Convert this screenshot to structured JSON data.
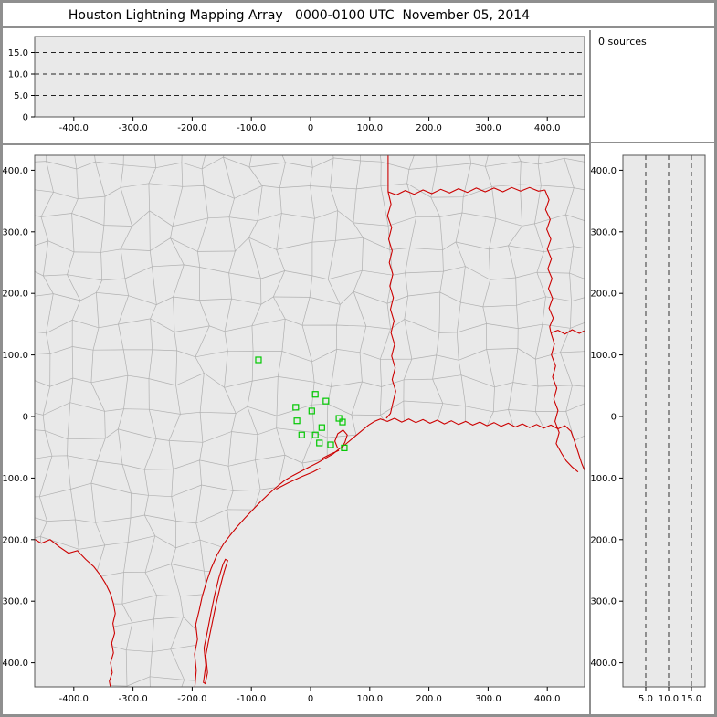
{
  "title": "Houston Lightning Mapping Array   0000-0100 UTC  November 05, 2014",
  "sources_panel": {
    "label": "0 sources"
  },
  "colors": {
    "plot_bg": "#e9e9e9",
    "county_line": "#b0b0b0",
    "state_line": "#cc0000",
    "station": "#00c800",
    "frame": "#8f8f8f",
    "axis": "#555555",
    "dashed": "#222222",
    "tick": "#000000"
  },
  "map_features": [
    "county-boundaries",
    "state-borders",
    "coastline",
    "rio-grande-river",
    "barrier-islands",
    "galveston-bay"
  ],
  "chart_data": [
    {
      "id": "altitude-vs-east-west",
      "type": "scatter",
      "role": "altitude (km) vs east-west distance (km), cross-section panel",
      "xlim": [
        -466,
        462
      ],
      "ylim": [
        0,
        18.7
      ],
      "grid": "dashed horizontal lines at 5, 10, 15 km",
      "dashed_levels": [
        5,
        10,
        15
      ],
      "x_ticks": [
        {
          "v": -400,
          "label": "-400.0"
        },
        {
          "v": -300,
          "label": "-300.0"
        },
        {
          "v": -200,
          "label": "-200.0"
        },
        {
          "v": -100,
          "label": "-100.0"
        },
        {
          "v": 0,
          "label": "0"
        },
        {
          "v": 100,
          "label": "100.0"
        },
        {
          "v": 200,
          "label": "200.0"
        },
        {
          "v": 300,
          "label": "300.0"
        },
        {
          "v": 400,
          "label": "400.0"
        }
      ],
      "y_ticks": [
        {
          "v": 15,
          "label": "15.0"
        },
        {
          "v": 10,
          "label": "10.0"
        },
        {
          "v": 5,
          "label": "5.0"
        },
        {
          "v": 0,
          "label": "0"
        }
      ],
      "points": []
    },
    {
      "id": "plan-view-map",
      "type": "scatter",
      "role": "plan view map of Texas/Louisiana counties with LMA station markers; no lightning sources plotted",
      "xlim": [
        -466,
        463
      ],
      "ylim": [
        -440,
        424
      ],
      "x_ticks": [
        {
          "v": -400,
          "label": "-400.0"
        },
        {
          "v": -300,
          "label": "-300.0"
        },
        {
          "v": -200,
          "label": "-200.0"
        },
        {
          "v": -100,
          "label": "-100.0"
        },
        {
          "v": 0,
          "label": "0"
        },
        {
          "v": 100,
          "label": "100.0"
        },
        {
          "v": 200,
          "label": "200.0"
        },
        {
          "v": 300,
          "label": "300.0"
        },
        {
          "v": 400,
          "label": "400.0"
        }
      ],
      "y_ticks": [
        {
          "v": 400,
          "label": "400.0"
        },
        {
          "v": 300,
          "label": "300.0"
        },
        {
          "v": 200,
          "label": "200.0"
        },
        {
          "v": 100,
          "label": "100.0"
        },
        {
          "v": 0,
          "label": "0"
        },
        {
          "v": -100,
          "label": "-100.0"
        },
        {
          "v": -200,
          "label": "-200.0"
        },
        {
          "v": -300,
          "label": "-300.0"
        },
        {
          "v": -400,
          "label": "-400.0"
        }
      ],
      "stations": [
        [
          -88,
          92
        ],
        [
          8,
          36
        ],
        [
          26,
          25
        ],
        [
          -25,
          15
        ],
        [
          2,
          9
        ],
        [
          -23,
          -7
        ],
        [
          -15,
          -30
        ],
        [
          8,
          -30
        ],
        [
          19,
          -18
        ],
        [
          48,
          -3
        ],
        [
          54,
          -9
        ],
        [
          15,
          -43
        ],
        [
          34,
          -46
        ],
        [
          57,
          -51
        ]
      ]
    },
    {
      "id": "north-south-vs-altitude",
      "type": "scatter",
      "role": "north-south distance (km) vs altitude (km), cross-section panel",
      "xlim": [
        0,
        18
      ],
      "ylim": [
        -440,
        424
      ],
      "grid": "dashed vertical lines at 5, 10, 15 km",
      "dashed_levels": [
        5,
        10,
        15
      ],
      "x_ticks": [
        {
          "v": 5,
          "label": "5.0"
        },
        {
          "v": 10,
          "label": "10.0"
        },
        {
          "v": 15,
          "label": "15.0"
        }
      ],
      "y_ticks": [
        {
          "v": 400,
          "label": "400.0"
        },
        {
          "v": 300,
          "label": "300.0"
        },
        {
          "v": 200,
          "label": "200.0"
        },
        {
          "v": 100,
          "label": "100.0"
        },
        {
          "v": 0,
          "label": "0"
        },
        {
          "v": -100,
          "label": "-100.0"
        },
        {
          "v": -200,
          "label": "-200.0"
        },
        {
          "v": -300,
          "label": "-300.0"
        },
        {
          "v": -400,
          "label": "-400.0"
        }
      ],
      "points": []
    }
  ]
}
